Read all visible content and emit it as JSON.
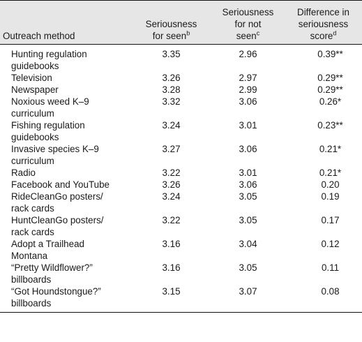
{
  "header": {
    "method": "Outreach method",
    "seen": "Seriousness for seen",
    "seen_line1": "Seriousness",
    "seen_line2": "for seen",
    "seen_sup": "b",
    "not_seen_line1": "Seriousness",
    "not_seen_line2": "for not",
    "not_seen_line3": "seen",
    "not_seen_sup": "c",
    "diff_line1": "Difference in",
    "diff_line2": "seriousness",
    "diff_line3": "score",
    "diff_sup": "d"
  },
  "rows": [
    {
      "method_l1": "Hunting regulation",
      "method_l2": "guidebooks",
      "seen": "3.35",
      "not_seen": "2.96",
      "diff": "0.39**"
    },
    {
      "method_l1": "Television",
      "method_l2": "",
      "seen": "3.26",
      "not_seen": "2.97",
      "diff": "0.29**"
    },
    {
      "method_l1": "Newspaper",
      "method_l2": "",
      "seen": "3.28",
      "not_seen": "2.99",
      "diff": "0.29**"
    },
    {
      "method_l1": "Noxious weed K–9",
      "method_l2": "curriculum",
      "seen": "3.32",
      "not_seen": "3.06",
      "diff": "0.26*"
    },
    {
      "method_l1": "Fishing regulation",
      "method_l2": "guidebooks",
      "seen": "3.24",
      "not_seen": "3.01",
      "diff": "0.23**"
    },
    {
      "method_l1": "Invasive species K–9",
      "method_l2": "curriculum",
      "seen": "3.27",
      "not_seen": "3.06",
      "diff": "0.21*"
    },
    {
      "method_l1": "Radio",
      "method_l2": "",
      "seen": "3.22",
      "not_seen": "3.01",
      "diff": "0.21*"
    },
    {
      "method_l1": "Facebook and YouTube",
      "method_l2": "",
      "seen": "3.26",
      "not_seen": "3.06",
      "diff": "0.20"
    },
    {
      "method_l1": "RideCleanGo posters/",
      "method_l2": "rack cards",
      "seen": "3.24",
      "not_seen": "3.05",
      "diff": "0.19"
    },
    {
      "method_l1": "HuntCleanGo posters/",
      "method_l2": "rack cards",
      "seen": "3.22",
      "not_seen": "3.05",
      "diff": "0.17"
    },
    {
      "method_l1": "Adopt a Trailhead",
      "method_l2": "Montana",
      "seen": "3.16",
      "not_seen": "3.04",
      "diff": "0.12"
    },
    {
      "method_l1": "“Pretty Wildflower?”",
      "method_l2": "billboards",
      "seen": "3.16",
      "not_seen": "3.05",
      "diff": "0.11"
    },
    {
      "method_l1": "“Got Houndstongue?”",
      "method_l2": "billboards",
      "seen": "3.15",
      "not_seen": "3.07",
      "diff": "0.08"
    }
  ]
}
